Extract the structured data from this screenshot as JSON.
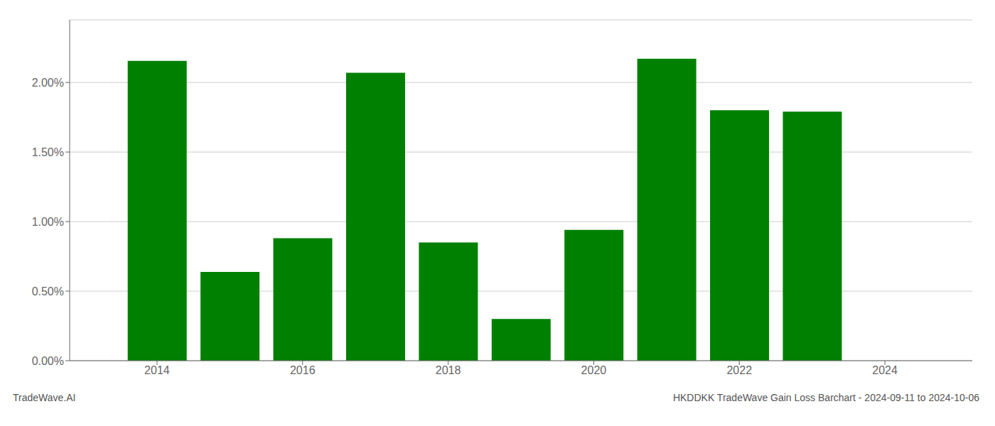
{
  "chart_data": {
    "type": "bar",
    "title": "HKDDKK TradeWave Gain Loss Barchart - 2024-09-11 to 2024-10-06",
    "annotations": [
      "TradeWave.AI"
    ],
    "x": [
      2014,
      2015,
      2016,
      2017,
      2018,
      2019,
      2020,
      2021,
      2022,
      2023
    ],
    "values": [
      0.02155,
      0.00638,
      0.0088,
      0.0207,
      0.0085,
      0.003,
      0.0094,
      0.0217,
      0.018,
      0.0179
    ],
    "color": "#008000",
    "xlim": [
      2012.8,
      2025.2
    ],
    "xticks": [
      2014,
      2016,
      2018,
      2020,
      2022,
      2024
    ],
    "ylim": [
      0,
      0.0245
    ],
    "yticks": [
      {
        "value": 0.0,
        "label": "0.00%"
      },
      {
        "value": 0.005,
        "label": "0.50%"
      },
      {
        "value": 0.01,
        "label": "1.00%"
      },
      {
        "value": 0.015,
        "label": "1.50%"
      },
      {
        "value": 0.02,
        "label": "2.00%"
      }
    ],
    "grid": true
  }
}
